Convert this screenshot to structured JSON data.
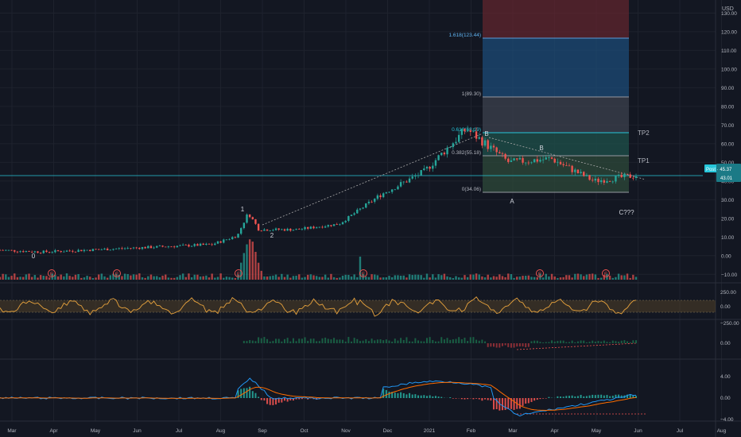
{
  "currency": "USD",
  "price_axis": {
    "ticks": [
      "130.00",
      "120.00",
      "110.00",
      "100.00",
      "90.00",
      "80.00",
      "70.00",
      "60.00",
      "50.00",
      "40.00",
      "30.00",
      "20.00",
      "10.00",
      "0.00",
      "−10.00"
    ]
  },
  "last_price": {
    "label_top": "Post · 45.37",
    "label_bottom": "43.01"
  },
  "x_axis": {
    "labels": [
      "Mar",
      "Apr",
      "May",
      "Jun",
      "Jul",
      "Aug",
      "Sep",
      "Oct",
      "Nov",
      "Dec",
      "2021",
      "Feb",
      "Mar",
      "Apr",
      "May",
      "Jun",
      "Jul",
      "Aug"
    ]
  },
  "fib": {
    "levels": [
      {
        "label": "1.618(123.44)",
        "value": 123.44,
        "color": "#2962ff"
      },
      {
        "label": "1(89.30)",
        "value": 89.3,
        "color": "#787b86"
      },
      {
        "label": "0.618(68.19)",
        "value": 68.19,
        "color": "#26c6da"
      },
      {
        "label": "0.382(55.18)",
        "value": 55.18,
        "color": "#787b86"
      },
      {
        "label": "0(34.06)",
        "value": 34.06,
        "color": "#787b86"
      }
    ],
    "targets": [
      "TP2",
      "TP1"
    ]
  },
  "wave_labels": [
    "0",
    "1",
    "2",
    "B",
    "A",
    "B",
    "C???"
  ],
  "earnings_marker": "E",
  "indicators": {
    "cci": {
      "ticks": [
        "250.00",
        "0.00",
        "−250.00"
      ],
      "colors": {
        "line": "#e8a33d",
        "band": "#5d4a2a"
      }
    },
    "histogram": {
      "ticks": [
        "0.00"
      ]
    },
    "macd": {
      "ticks": [
        "4.00",
        "0.00",
        "−4.00"
      ],
      "colors": {
        "macd": "#2196f3",
        "signal": "#ff6d00",
        "up": "#26a69a",
        "down": "#ef5350"
      }
    }
  },
  "chart_data": {
    "type": "line",
    "title": "",
    "x": [
      "Mar",
      "Apr",
      "May",
      "Jun",
      "Jul",
      "Aug",
      "Sep",
      "Oct",
      "Nov",
      "Dec",
      "2021",
      "Feb",
      "Mar",
      "Apr",
      "May",
      "Jun"
    ],
    "series": [
      {
        "values": [
          3,
          2,
          3,
          4,
          5,
          6,
          14,
          14,
          17,
          33,
          45,
          68,
          50,
          52,
          40,
          43
        ]
      }
    ],
    "ylim": [
      -12,
      137
    ],
    "colors": {
      "up": "#26a69a",
      "down": "#ef5350"
    }
  }
}
